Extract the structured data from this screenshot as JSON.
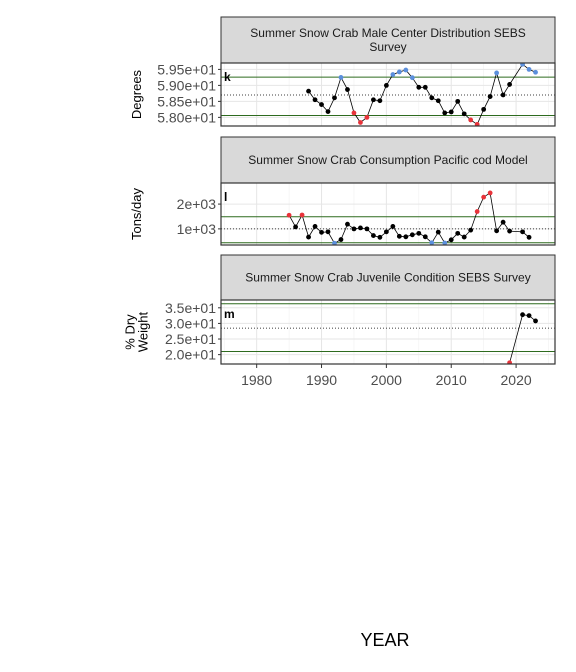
{
  "colors": {
    "normal": "#000000",
    "high": "#E8333A",
    "low": "#5B8FDC",
    "band": "#2E6B1F",
    "mean": "#000000",
    "strip": "#d9d9d9"
  },
  "x_axis": {
    "label": "YEAR",
    "ticks": [
      1980,
      1990,
      2000,
      2010,
      2020
    ],
    "range": [
      1974.5,
      2026
    ]
  },
  "chart_data": [
    {
      "type": "line",
      "tag": "k",
      "title": "Summer Snow Crab Male Center Distribution SEBS Survey",
      "title_lines": [
        "Summer Snow Crab Male Center Distribution SEBS",
        "Survey"
      ],
      "ylabel": "Degrees",
      "ylabel_lines": [
        "Degrees"
      ],
      "ylim": [
        57.73,
        59.7
      ],
      "yticks": [
        58.0,
        58.5,
        59.0,
        59.5
      ],
      "ytick_labels": [
        "5.80e+01",
        "5.85e+01",
        "5.90e+01",
        "5.95e+01"
      ],
      "mean": 58.7,
      "band": [
        58.06,
        59.26
      ],
      "x": [
        1988,
        1989,
        1990,
        1991,
        1992,
        1993,
        1994,
        1995,
        1996,
        1997,
        1998,
        1999,
        2000,
        2001,
        2002,
        2003,
        2004,
        2005,
        2006,
        2007,
        2008,
        2009,
        2010,
        2011,
        2012,
        2013,
        2014,
        2015,
        2016,
        2017,
        2018,
        2019,
        2021,
        2022,
        2023
      ],
      "values": [
        58.82,
        58.55,
        58.4,
        58.18,
        58.61,
        59.25,
        58.87,
        58.14,
        57.84,
        58.0,
        58.55,
        58.52,
        59.0,
        59.34,
        59.42,
        59.48,
        59.24,
        58.94,
        58.94,
        58.61,
        58.52,
        58.14,
        58.17,
        58.5,
        58.11,
        57.92,
        57.78,
        58.25,
        58.65,
        59.39,
        58.7,
        59.03,
        59.66,
        59.5,
        59.41
      ],
      "flags": [
        "n",
        "n",
        "n",
        "n",
        "n",
        "low",
        "n",
        "high",
        "high",
        "high",
        "n",
        "n",
        "n",
        "low",
        "low",
        "low",
        "low",
        "n",
        "n",
        "n",
        "n",
        "n",
        "n",
        "n",
        "n",
        "high",
        "high",
        "n",
        "n",
        "low",
        "n",
        "n",
        "low",
        "low",
        "low"
      ]
    },
    {
      "type": "line",
      "tag": "l",
      "title": "Summer Snow Crab Consumption Pacific cod Model",
      "title_lines": [
        "Summer Snow Crab Consumption Pacific cod Model"
      ],
      "ylabel": "Tons/day",
      "ylabel_lines": [
        "Tons/day"
      ],
      "ylim": [
        350,
        2850
      ],
      "yticks": [
        1000,
        2000
      ],
      "ytick_labels": [
        "1e+03",
        "2e+03"
      ],
      "mean": 1000,
      "band": [
        440,
        1490
      ],
      "x": [
        1985,
        1986,
        1987,
        1988,
        1989,
        1990,
        1991,
        1992,
        1993,
        1994,
        1995,
        1996,
        1997,
        1998,
        1999,
        2000,
        2001,
        2002,
        2003,
        2004,
        2005,
        2006,
        2007,
        2008,
        2009,
        2010,
        2011,
        2012,
        2013,
        2014,
        2015,
        2016,
        2017,
        2018,
        2019,
        2021,
        2022
      ],
      "values": [
        1550,
        1080,
        1560,
        670,
        1100,
        860,
        880,
        420,
        570,
        1190,
        1000,
        1040,
        1000,
        730,
        660,
        880,
        1100,
        700,
        680,
        760,
        820,
        680,
        440,
        870,
        430,
        560,
        820,
        670,
        950,
        1700,
        2280,
        2450,
        920,
        1270,
        910,
        880,
        660
      ],
      "flags": [
        "high",
        "n",
        "high",
        "n",
        "n",
        "n",
        "n",
        "low",
        "n",
        "n",
        "n",
        "n",
        "n",
        "n",
        "n",
        "n",
        "n",
        "n",
        "n",
        "n",
        "n",
        "n",
        "low",
        "n",
        "low",
        "n",
        "n",
        "n",
        "n",
        "high",
        "high",
        "high",
        "n",
        "n",
        "n",
        "n",
        "n"
      ]
    },
    {
      "type": "line",
      "tag": "m",
      "title": "Summer Snow Crab Juvenile Condition SEBS Survey",
      "title_lines": [
        "Summer Snow Crab Juvenile Condition SEBS Survey"
      ],
      "ylabel": "% Dry Weight",
      "ylabel_lines": [
        "% Dry",
        "Weight"
      ],
      "ylim": [
        17.0,
        37.5
      ],
      "yticks": [
        20,
        25,
        30,
        35
      ],
      "ytick_labels": [
        "2.0e+01",
        "2.5e+01",
        "3.0e+01",
        "3.5e+01"
      ],
      "mean": 28.5,
      "band": [
        21.0,
        36.3
      ],
      "x": [
        2019,
        2021,
        2022,
        2023
      ],
      "values": [
        17.4,
        32.8,
        32.5,
        30.8
      ],
      "flags": [
        "high",
        "n",
        "n",
        "n"
      ]
    }
  ]
}
